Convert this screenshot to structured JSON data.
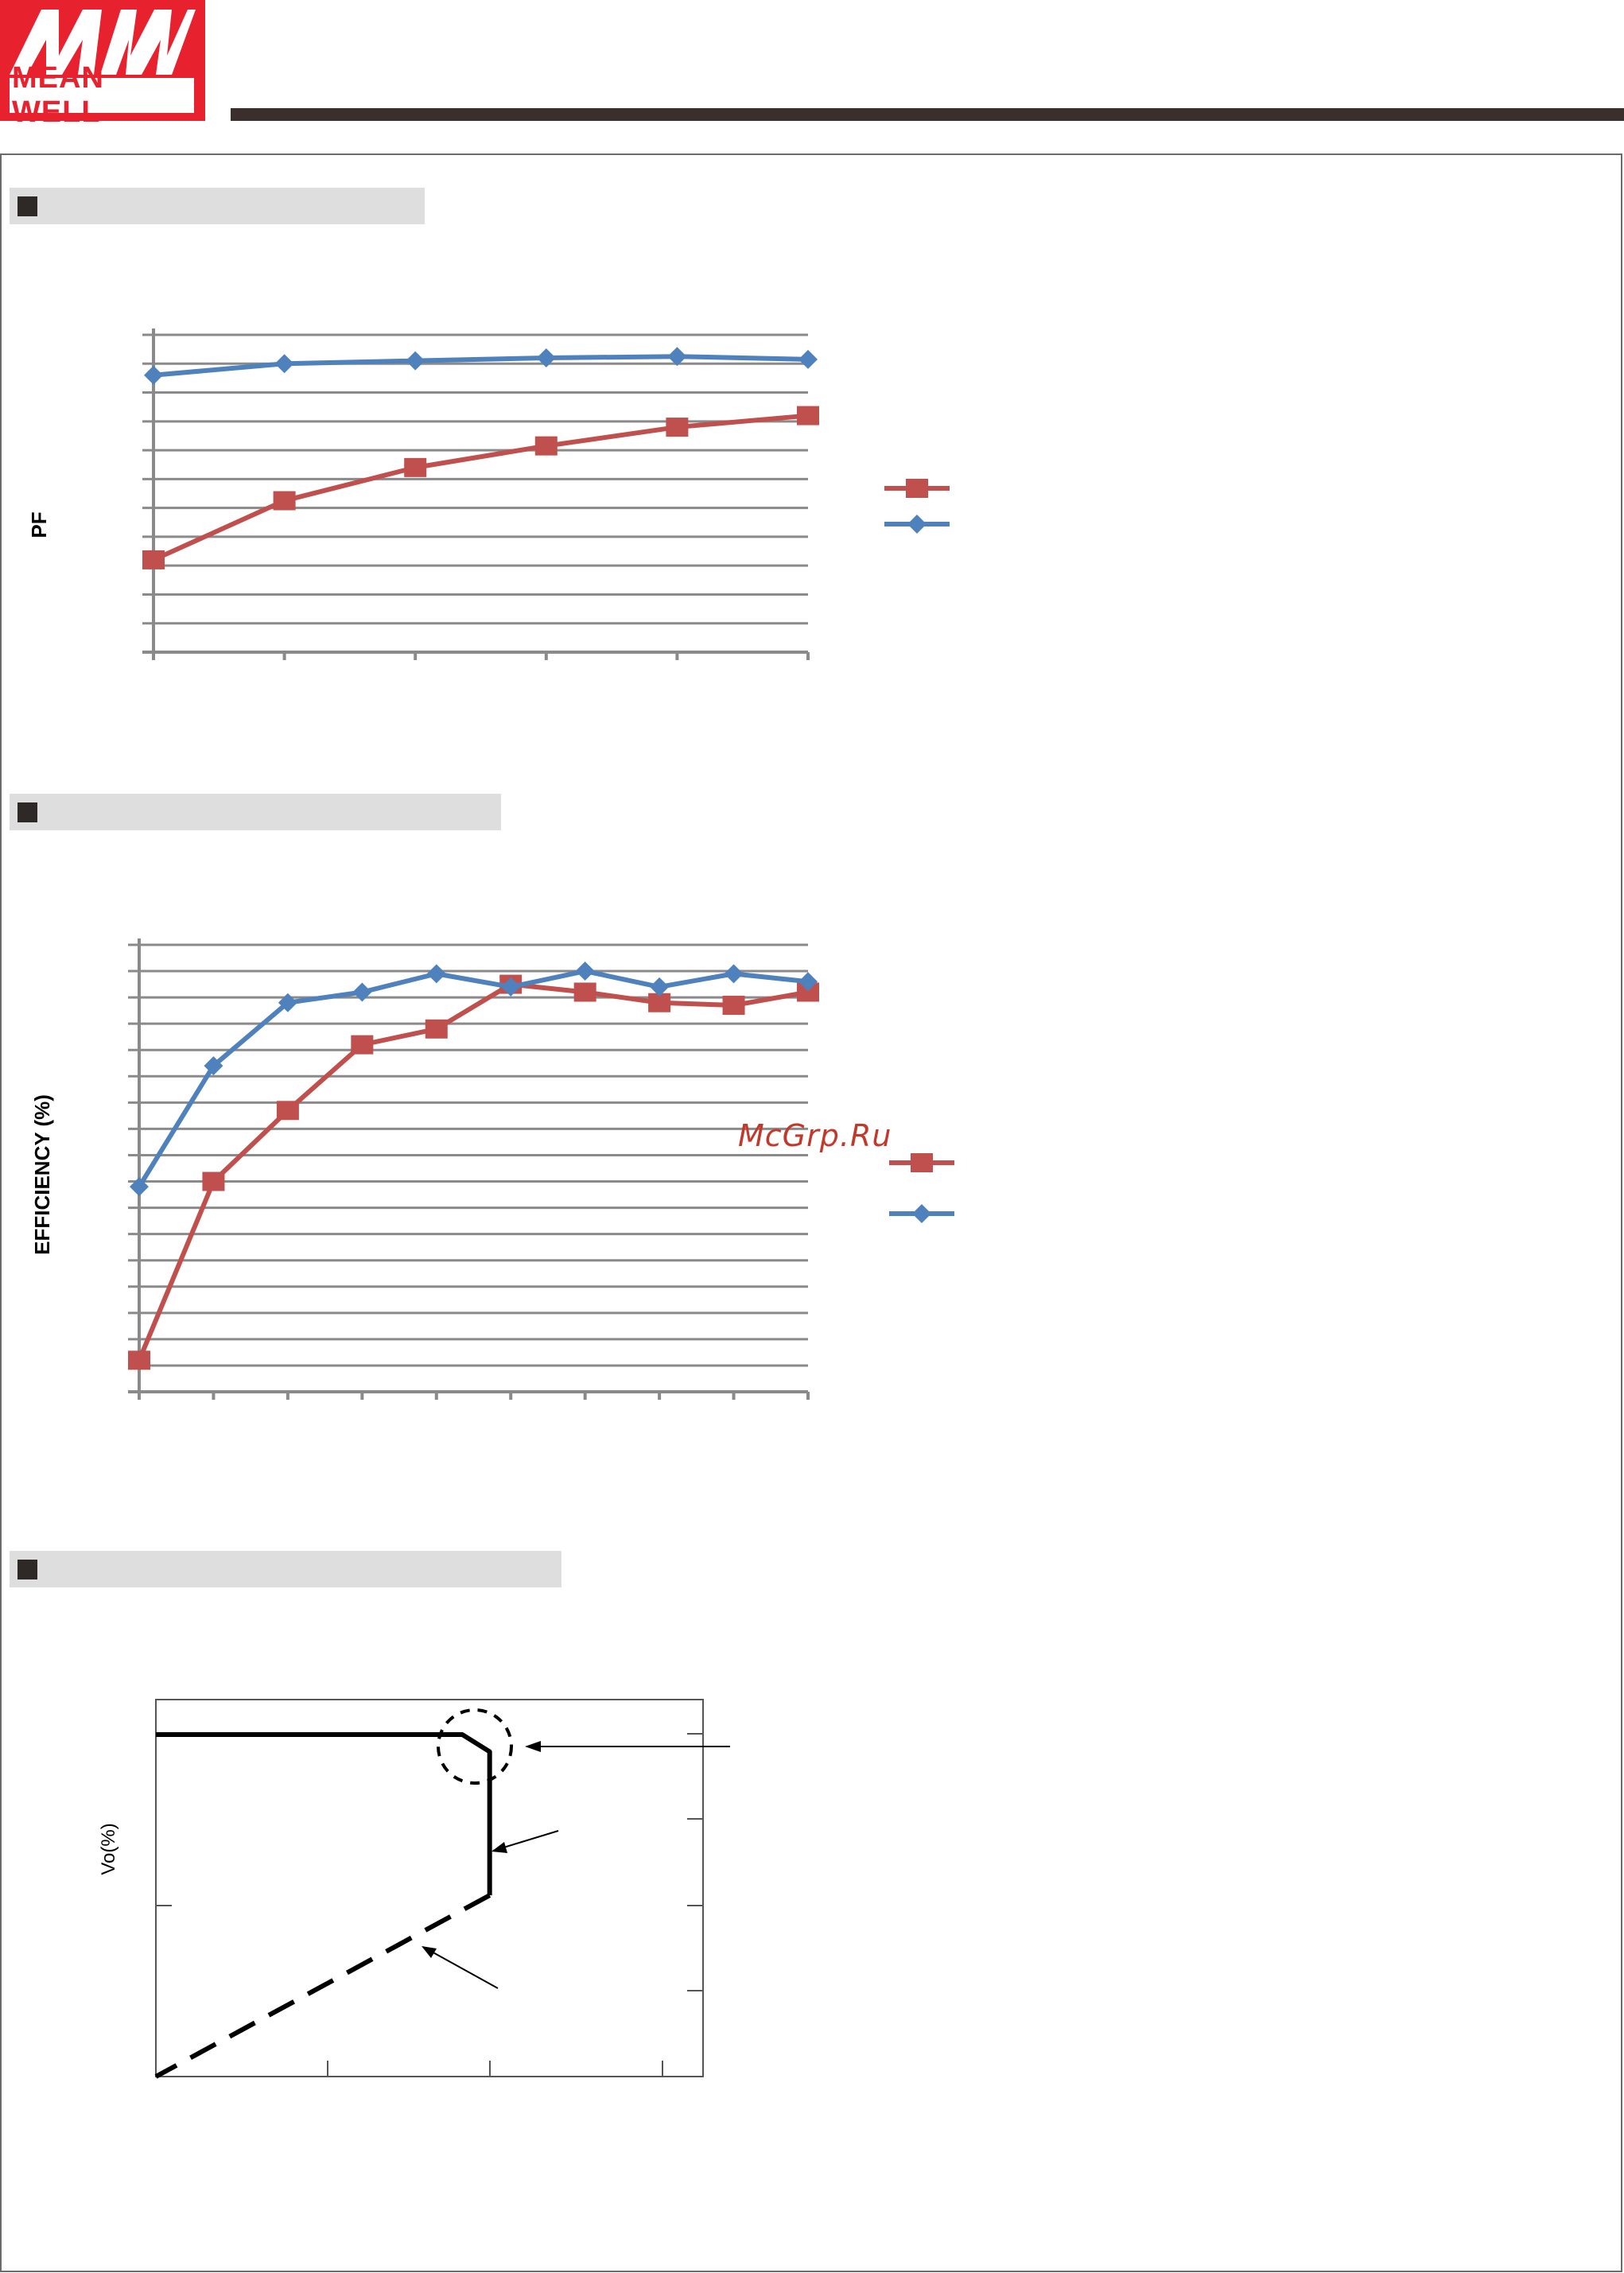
{
  "logo": {
    "brand_text": "MEAN WELL",
    "brand_color": "#e7222e"
  },
  "watermark": "McGrp.Ru",
  "sections": [
    {
      "title": ""
    },
    {
      "title": ""
    },
    {
      "title": ""
    }
  ],
  "chart_data": [
    {
      "type": "line",
      "title": "",
      "ylabel": "PF",
      "xlabel": "",
      "x": [
        0,
        1,
        2,
        3,
        4,
        5
      ],
      "ylim": [
        0,
        11
      ],
      "grid": true,
      "legend_position": "right",
      "series": [
        {
          "name": "",
          "color": "#c0504d",
          "marker": "square",
          "values": [
            3.2,
            5.25,
            6.4,
            7.15,
            7.8,
            8.2
          ]
        },
        {
          "name": "",
          "color": "#4f81bd",
          "marker": "diamond",
          "values": [
            9.6,
            10.0,
            10.1,
            10.2,
            10.25,
            10.15
          ]
        }
      ]
    },
    {
      "type": "line",
      "title": "",
      "ylabel": "EFFICIENCY (%)",
      "xlabel": "",
      "x": [
        0,
        1,
        2,
        3,
        4,
        5,
        6,
        7,
        8,
        9
      ],
      "ylim": [
        0,
        17
      ],
      "grid": true,
      "legend_position": "right",
      "series": [
        {
          "name": "",
          "color": "#c0504d",
          "marker": "square",
          "values": [
            1.2,
            8.0,
            10.7,
            13.2,
            13.8,
            15.5,
            15.2,
            14.8,
            14.7,
            15.2
          ]
        },
        {
          "name": "",
          "color": "#4f81bd",
          "marker": "diamond",
          "values": [
            7.8,
            12.4,
            14.8,
            15.2,
            15.9,
            15.4,
            16.0,
            15.4,
            15.9,
            15.6
          ]
        }
      ]
    },
    {
      "type": "line",
      "title": "",
      "ylabel": "Vo(%)",
      "xlabel": "",
      "xlim": [
        0,
        100
      ],
      "ylim": [
        0,
        100
      ],
      "grid": false,
      "annotations": [
        {
          "id": "knee-pointer",
          "text": ""
        },
        {
          "id": "vertical-segment-pointer",
          "text": ""
        },
        {
          "id": "foldback-pointer",
          "text": ""
        }
      ],
      "series": [
        {
          "name": "",
          "style": "solid",
          "color": "#000000",
          "points": [
            [
              0,
              100
            ],
            [
              56,
              100
            ],
            [
              61,
              95
            ],
            [
              61,
              53
            ]
          ]
        },
        {
          "name": "",
          "style": "dashed",
          "color": "#000000",
          "points": [
            [
              61,
              53
            ],
            [
              0,
              0
            ]
          ]
        }
      ]
    }
  ]
}
